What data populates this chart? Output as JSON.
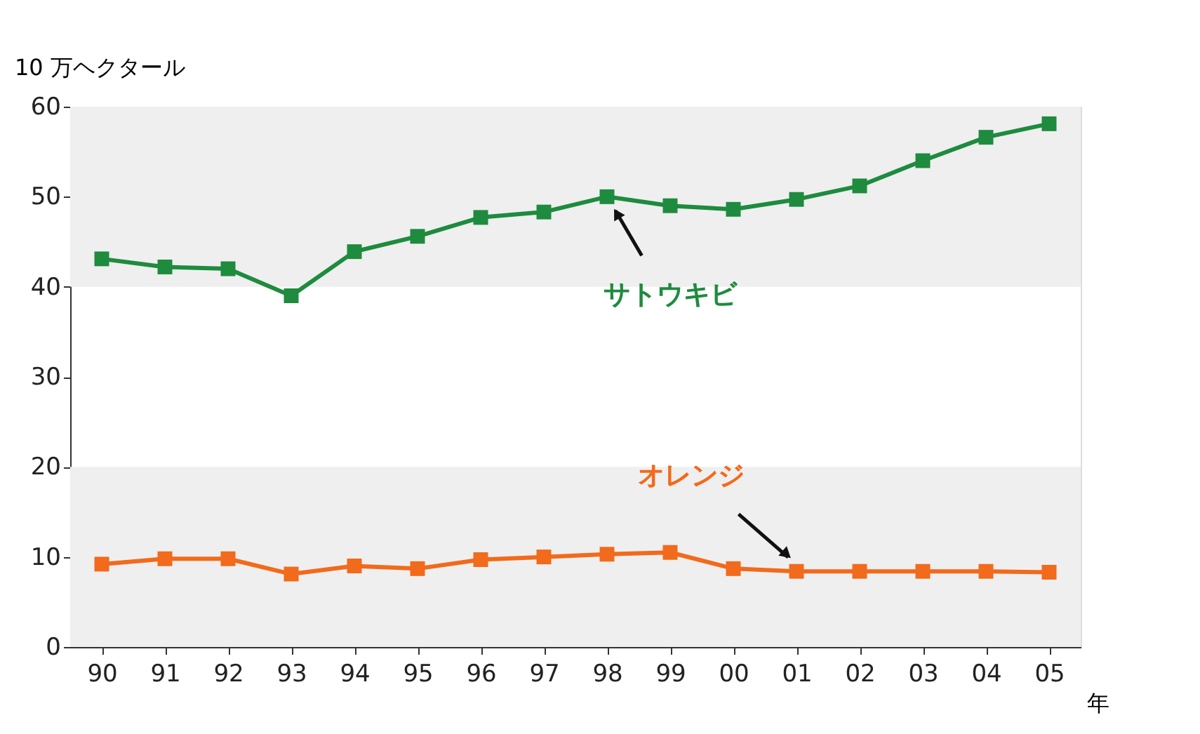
{
  "chart_data": {
    "type": "line",
    "xlabel": "年",
    "ylabel": "10 万ヘクタール",
    "categories": [
      "90",
      "91",
      "92",
      "93",
      "94",
      "95",
      "96",
      "97",
      "98",
      "99",
      "00",
      "01",
      "02",
      "03",
      "04",
      "05"
    ],
    "series": [
      {
        "name": "サトウキビ",
        "color": "#1e8b3e",
        "values": [
          43.1,
          42.2,
          42.0,
          39.0,
          43.9,
          45.6,
          47.7,
          48.3,
          50.0,
          49.0,
          48.6,
          49.7,
          51.2,
          54.0,
          56.6,
          58.1
        ]
      },
      {
        "name": "オレンジ",
        "color": "#f26a1b",
        "values": [
          9.2,
          9.8,
          9.8,
          8.1,
          9.0,
          8.7,
          9.7,
          10.0,
          10.3,
          10.5,
          8.7,
          8.4,
          8.4,
          8.4,
          8.4,
          8.3
        ]
      }
    ],
    "ylim": [
      0,
      60
    ],
    "yticks": [
      0,
      10,
      20,
      30,
      40,
      50,
      60
    ],
    "grid": false,
    "marker": "square",
    "line_style": "solid",
    "bands": [
      {
        "axis": "y",
        "from": 40,
        "to": 60,
        "color": "#efefef"
      },
      {
        "axis": "y",
        "from": 0,
        "to": 20,
        "color": "#efefef"
      }
    ]
  }
}
